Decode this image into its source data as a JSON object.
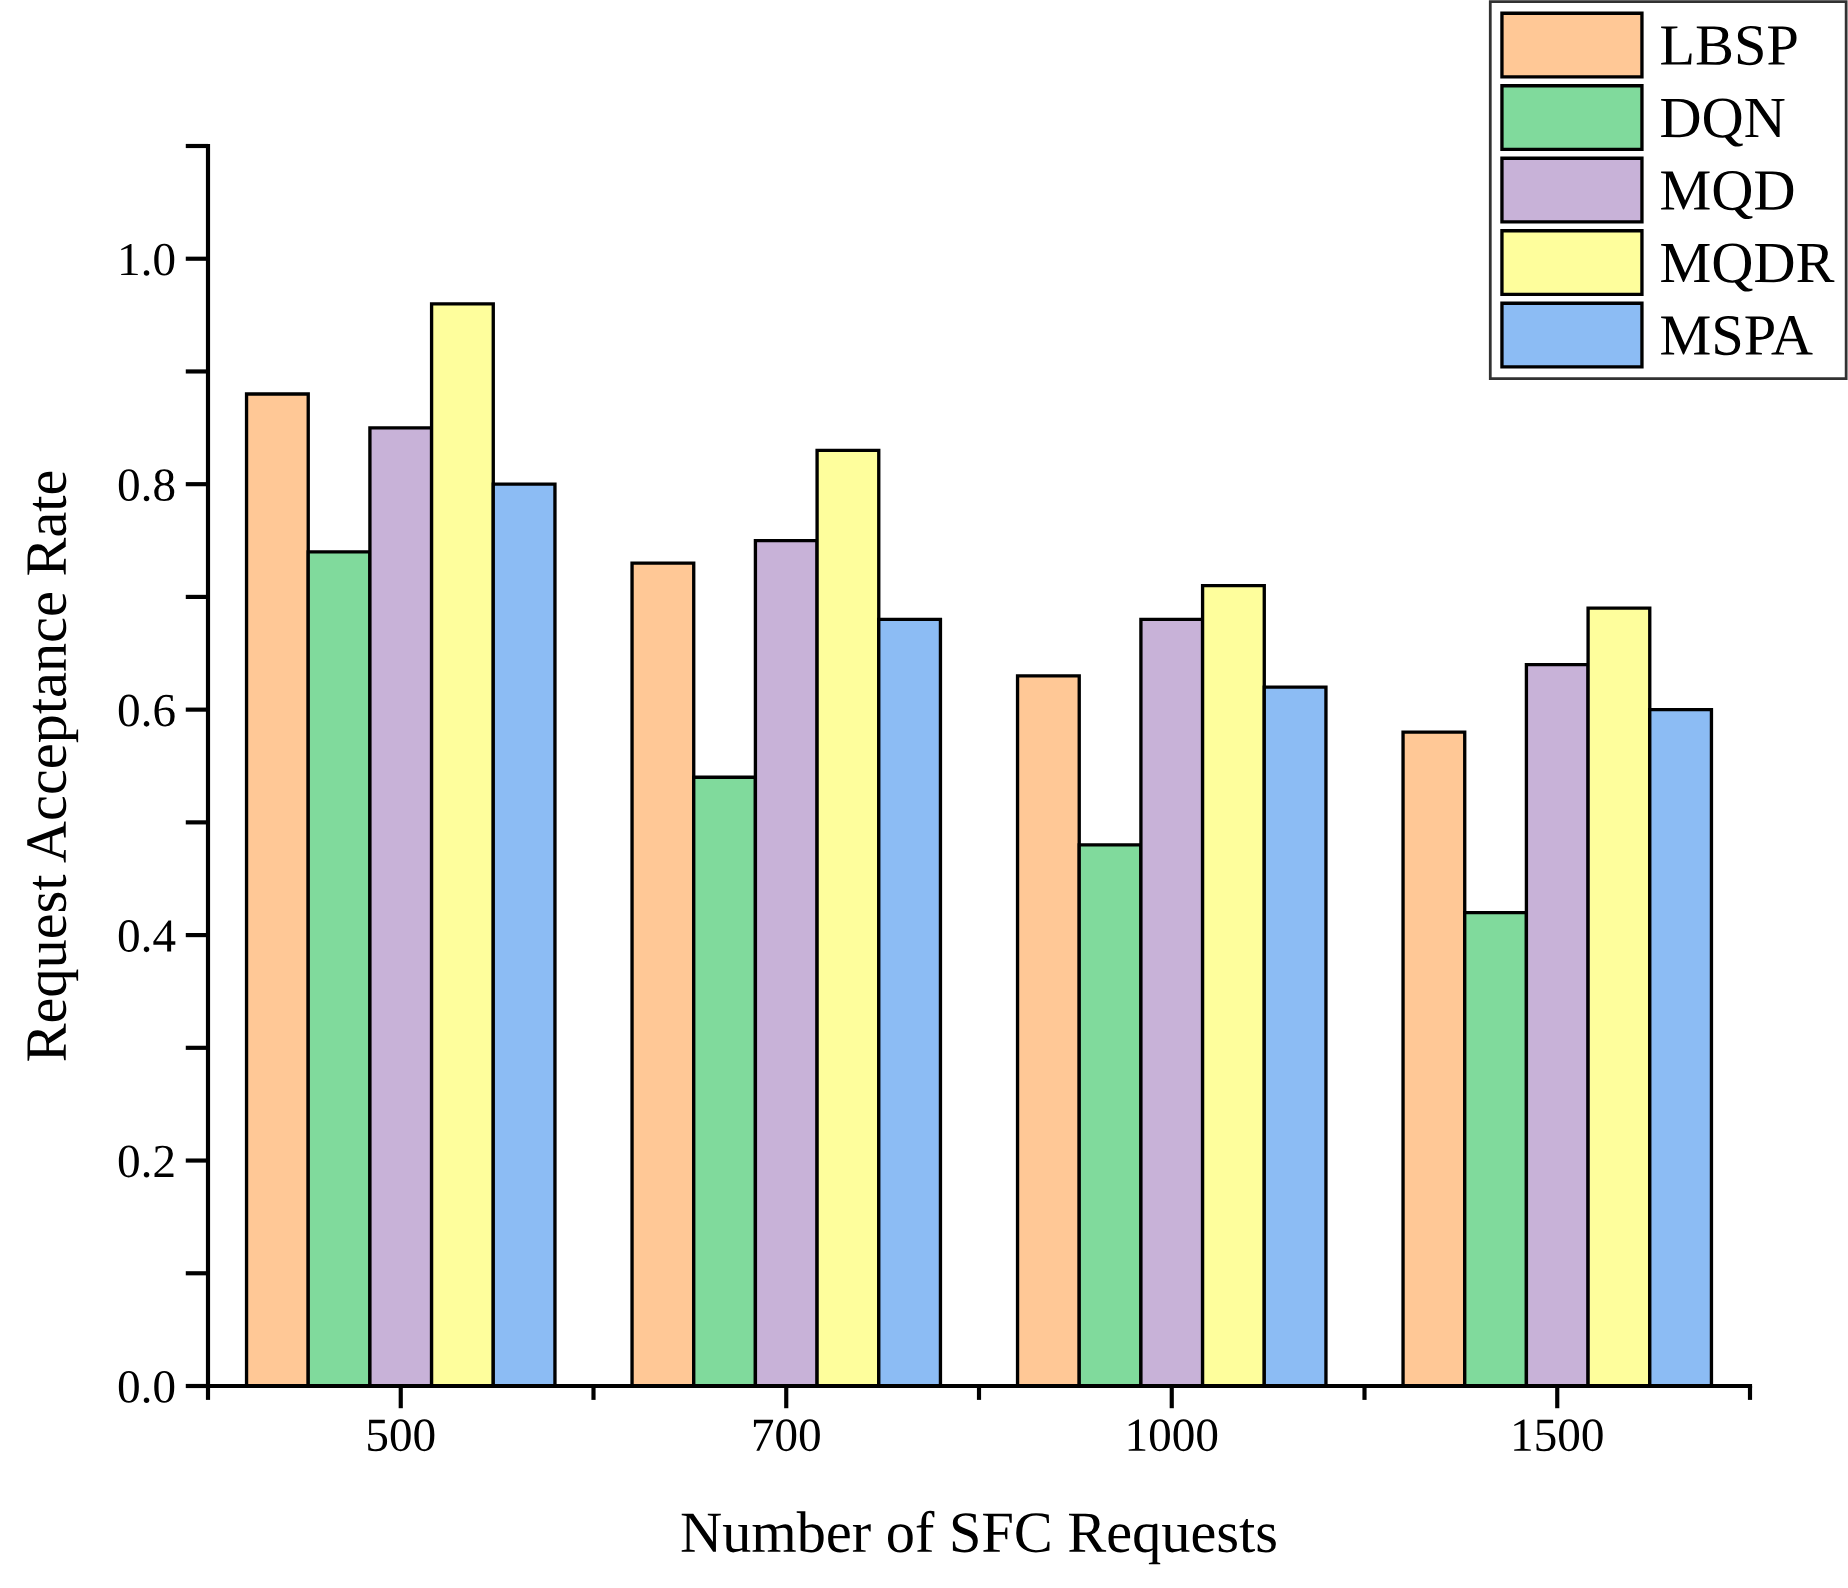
{
  "chart_data": {
    "type": "bar",
    "xlabel": "Number of SFC Requests",
    "ylabel": "Request Acceptance Rate",
    "categories": [
      "500",
      "700",
      "1000",
      "1500"
    ],
    "series": [
      {
        "name": "LBSP",
        "color": "#ffc896",
        "values": [
          0.88,
          0.73,
          0.63,
          0.58
        ]
      },
      {
        "name": "DQN",
        "color": "#80da9c",
        "values": [
          0.74,
          0.54,
          0.48,
          0.42
        ]
      },
      {
        "name": "MQD",
        "color": "#c8b2d8",
        "values": [
          0.85,
          0.75,
          0.68,
          0.64
        ]
      },
      {
        "name": "MQDR",
        "color": "#fefe9c",
        "values": [
          0.96,
          0.83,
          0.71,
          0.69
        ]
      },
      {
        "name": "MSPA",
        "color": "#8cbcf4",
        "values": [
          0.8,
          0.68,
          0.62,
          0.6
        ]
      }
    ],
    "ylim": [
      0,
      1.1
    ],
    "yticks": [
      {
        "value": 0.0,
        "label": "0.0"
      },
      {
        "value": 0.1,
        "label": null
      },
      {
        "value": 0.2,
        "label": "0.2"
      },
      {
        "value": 0.3,
        "label": null
      },
      {
        "value": 0.4,
        "label": "0.4"
      },
      {
        "value": 0.5,
        "label": null
      },
      {
        "value": 0.6,
        "label": "0.6"
      },
      {
        "value": 0.7,
        "label": null
      },
      {
        "value": 0.8,
        "label": "0.8"
      },
      {
        "value": 0.9,
        "label": null
      },
      {
        "value": 1.0,
        "label": "1.0"
      },
      {
        "value": 1.1,
        "label": null
      }
    ],
    "grid": false,
    "legend": "top right"
  }
}
